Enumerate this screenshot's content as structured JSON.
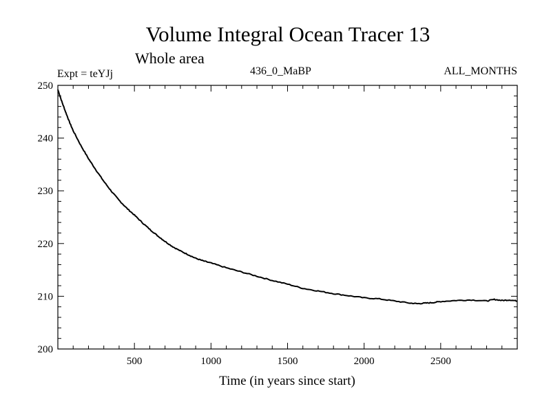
{
  "chart_data": {
    "type": "line",
    "title": "Volume Integral Ocean Tracer 13",
    "subtitle": "Whole area",
    "label_left": "Expt = teYJj",
    "label_center": "436_0_MaBP",
    "label_right": "ALL_MONTHS",
    "xlabel": "Time (in years since start)",
    "ylabel": "",
    "xlim": [
      0,
      3000
    ],
    "ylim": [
      200,
      250
    ],
    "xticks": [
      500,
      1000,
      1500,
      2000,
      2500
    ],
    "yticks": [
      200,
      210,
      220,
      230,
      240,
      250
    ],
    "grid": false,
    "line_color": "#000000",
    "series": [
      {
        "name": "Ocean Tracer 13",
        "x": [
          0,
          25,
          50,
          75,
          100,
          150,
          200,
          250,
          300,
          350,
          400,
          450,
          500,
          550,
          600,
          650,
          700,
          750,
          800,
          850,
          900,
          950,
          1000,
          1100,
          1200,
          1300,
          1400,
          1500,
          1600,
          1700,
          1800,
          1900,
          2000,
          2100,
          2200,
          2300,
          2350,
          2400,
          2450,
          2500,
          2600,
          2700,
          2800,
          2850,
          2900,
          2950,
          3000
        ],
        "values": [
          249.2,
          247.0,
          245.0,
          243.1,
          241.4,
          238.6,
          236.1,
          233.9,
          231.8,
          229.9,
          228.2,
          226.7,
          225.4,
          224.0,
          222.7,
          221.5,
          220.4,
          219.4,
          218.6,
          217.9,
          217.2,
          216.7,
          216.3,
          215.4,
          214.6,
          213.8,
          213.0,
          212.3,
          211.5,
          211.0,
          210.5,
          210.1,
          209.7,
          209.5,
          209.1,
          208.7,
          208.6,
          208.7,
          208.8,
          209.0,
          209.2,
          209.3,
          209.1,
          209.4,
          209.2,
          209.3,
          209.1
        ]
      }
    ]
  }
}
